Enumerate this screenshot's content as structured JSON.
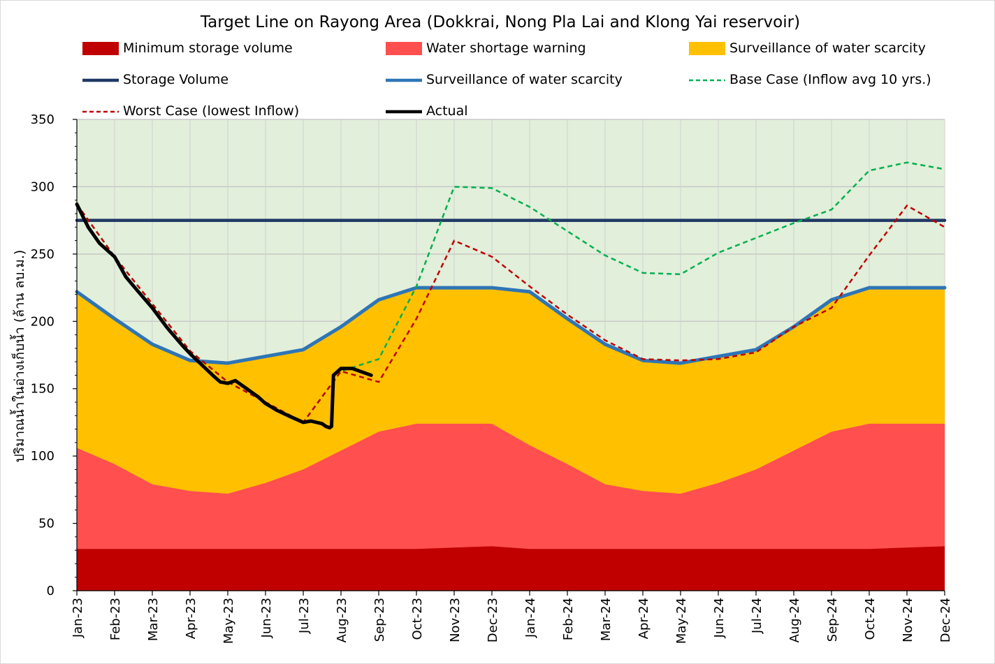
{
  "chart_data": {
    "type": "area",
    "title": "Target Line on Rayong Area (Dokkrai, Nong Pla Lai and Klong Yai reservoir)",
    "xlabel": "",
    "ylabel": "ปริมาณน้ำในอ่างเก็บน้ำ (ล้าน ลบ.ม.)",
    "ylim": [
      0,
      350
    ],
    "yticks": [
      0,
      50,
      100,
      150,
      200,
      250,
      300,
      350
    ],
    "grid": true,
    "legend_position": "top",
    "categories": [
      "Jan-23",
      "Feb-23",
      "Mar-23",
      "Apr-23",
      "May-23",
      "Jun-23",
      "Jul-23",
      "Aug-23",
      "Sep-23",
      "Oct-23",
      "Nov-23",
      "Dec-23",
      "Jan-24",
      "Feb-24",
      "Mar-24",
      "Apr-24",
      "May-24",
      "Jun-24",
      "Jul-24",
      "Aug-24",
      "Sep-24",
      "Oct-24",
      "Nov-24",
      "Dec-24"
    ],
    "background_color": "#e2efda",
    "series": [
      {
        "name": "Minimum storage volume",
        "kind": "area",
        "color": "#c00000",
        "values": [
          31,
          31,
          31,
          31,
          31,
          31,
          31,
          31,
          31,
          31,
          32,
          33,
          31,
          31,
          31,
          31,
          31,
          31,
          31,
          31,
          31,
          31,
          32,
          33
        ]
      },
      {
        "name": "Water shortage warning",
        "kind": "area",
        "color": "#ff4f4f",
        "values": [
          106,
          94,
          79,
          74,
          72,
          80,
          90,
          104,
          118,
          124,
          124,
          124,
          108,
          94,
          79,
          74,
          72,
          80,
          90,
          104,
          118,
          124,
          124,
          124
        ]
      },
      {
        "name": "Surveillance of water scarcity",
        "kind": "area",
        "color": "#ffc000",
        "values": [
          222,
          202,
          183,
          171,
          169,
          174,
          179,
          196,
          216,
          225,
          225,
          225,
          222,
          202,
          183,
          171,
          169,
          174,
          179,
          196,
          216,
          225,
          225,
          225
        ]
      },
      {
        "name": "Storage Volume",
        "kind": "line",
        "color": "#1f3864",
        "style": "solid",
        "values": [
          275,
          275,
          275,
          275,
          275,
          275,
          275,
          275,
          275,
          275,
          275,
          275,
          275,
          275,
          275,
          275,
          275,
          275,
          275,
          275,
          275,
          275,
          275,
          275
        ]
      },
      {
        "name": "Surveillance of water scarcity",
        "kind": "line",
        "color": "#2e75b6",
        "style": "solid",
        "values": [
          222,
          202,
          183,
          171,
          169,
          174,
          179,
          196,
          216,
          225,
          225,
          225,
          222,
          202,
          183,
          171,
          169,
          174,
          179,
          196,
          216,
          225,
          225,
          225
        ]
      },
      {
        "name": "Base Case (Inflow avg 10 yrs.)",
        "kind": "line",
        "color": "#00b050",
        "style": "dashed",
        "values": [
          287,
          248,
          213,
          178,
          155,
          140,
          125,
          163,
          172,
          226,
          300,
          299,
          285,
          267,
          249,
          236,
          235,
          251,
          262,
          273,
          283,
          312,
          318,
          313
        ]
      },
      {
        "name": "Worst Case (lowest Inflow)",
        "kind": "line",
        "color": "#c00000",
        "style": "dashed",
        "values": [
          287,
          248,
          213,
          178,
          155,
          140,
          125,
          163,
          155,
          202,
          260,
          248,
          226,
          205,
          186,
          172,
          171,
          172,
          177,
          196,
          210,
          249,
          286,
          270
        ]
      },
      {
        "name": "Actual",
        "kind": "line",
        "color": "#000000",
        "style": "solid",
        "x": [
          0,
          0.3,
          0.6,
          1.0,
          1.3,
          1.6,
          2.0,
          2.4,
          2.8,
          3.0,
          3.3,
          3.6,
          3.8,
          4.0,
          4.2,
          4.5,
          4.8,
          5.0,
          5.3,
          5.6,
          6.0,
          6.2,
          6.5,
          6.6,
          6.7,
          6.75,
          6.8,
          7.0,
          7.3,
          7.6,
          7.8
        ],
        "values": [
          287,
          270,
          258,
          248,
          233,
          223,
          210,
          195,
          182,
          176,
          168,
          160,
          155,
          154,
          156,
          150,
          144,
          139,
          134,
          130,
          125,
          126,
          124,
          122,
          121,
          122,
          160,
          165,
          165,
          162,
          160
        ]
      }
    ],
    "legend": [
      {
        "label": "Minimum storage volume",
        "marker": "box",
        "color": "#c00000"
      },
      {
        "label": "Water shortage warning",
        "marker": "box",
        "color": "#ff4f4f"
      },
      {
        "label": "Surveillance of water scarcity",
        "marker": "box",
        "color": "#ffc000"
      },
      {
        "label": "Storage Volume",
        "marker": "line",
        "color": "#1f3864",
        "style": "solid"
      },
      {
        "label": "Surveillance of water scarcity",
        "marker": "line",
        "color": "#2e75b6",
        "style": "solid"
      },
      {
        "label": "Base Case (Inflow avg 10 yrs.)",
        "marker": "line",
        "color": "#00b050",
        "style": "dashed"
      },
      {
        "label": "Worst Case (lowest Inflow)",
        "marker": "line",
        "color": "#c00000",
        "style": "dashed"
      },
      {
        "label": "Actual",
        "marker": "line",
        "color": "#000000",
        "style": "solid"
      }
    ]
  }
}
